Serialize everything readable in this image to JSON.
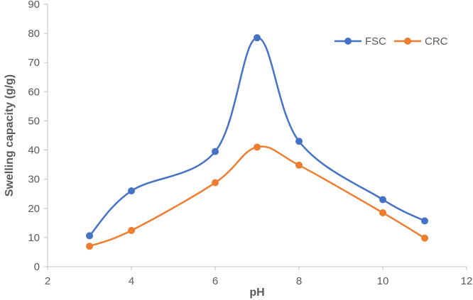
{
  "chart_data": {
    "type": "line",
    "title": "",
    "xlabel": "pH",
    "ylabel": "Swelling  capacity (g/g)",
    "xlim": [
      2,
      12
    ],
    "ylim": [
      0,
      90
    ],
    "x_ticks": [
      2,
      4,
      6,
      8,
      10,
      12
    ],
    "y_ticks": [
      0,
      10,
      20,
      30,
      40,
      50,
      60,
      70,
      80,
      90
    ],
    "grid": false,
    "smooth": true,
    "legend_position": "top-right",
    "x": [
      3,
      4,
      6,
      7,
      8,
      10,
      11
    ],
    "series": [
      {
        "name": "FSC",
        "color": "#4472C4",
        "values": [
          10.6,
          26.0,
          39.5,
          78.5,
          43.0,
          23.0,
          15.7
        ]
      },
      {
        "name": "CRC",
        "color": "#ED7D31",
        "values": [
          7.0,
          12.4,
          28.8,
          41.0,
          34.8,
          18.5,
          9.8
        ]
      }
    ]
  }
}
